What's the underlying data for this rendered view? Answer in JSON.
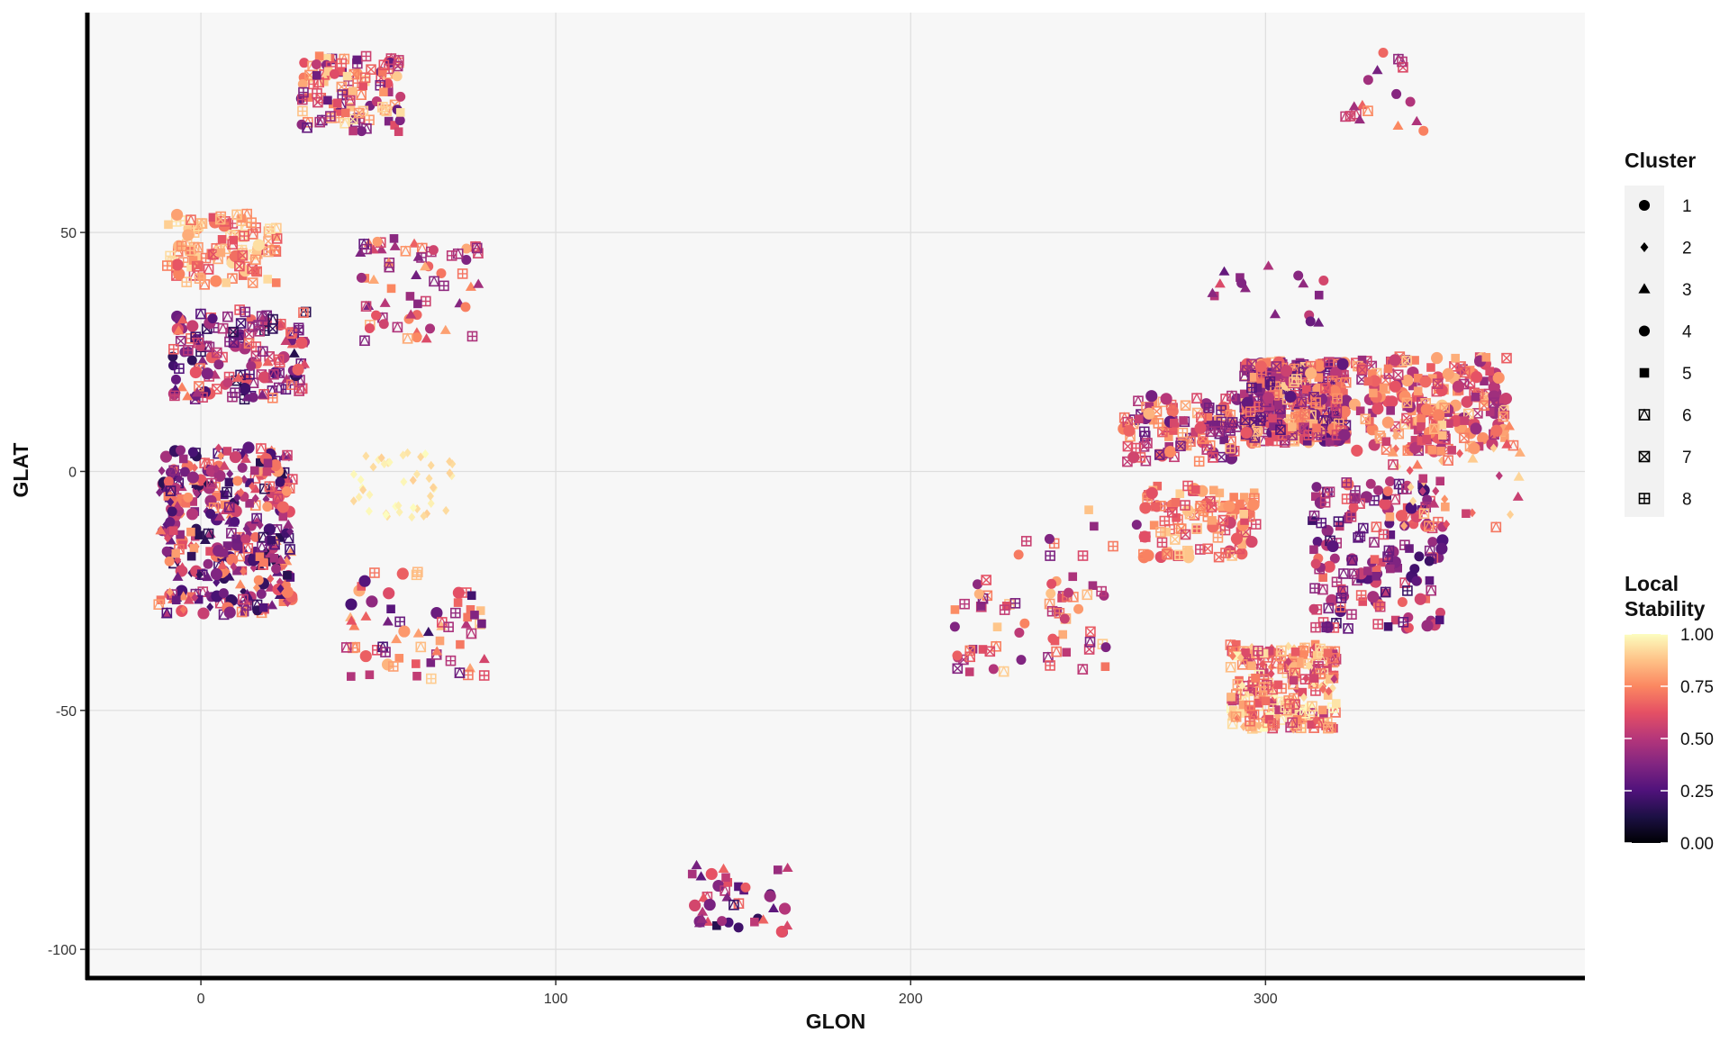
{
  "chart_data": {
    "type": "scatter",
    "xlabel": "GLON",
    "ylabel": "GLAT",
    "xlim": [
      -32,
      390
    ],
    "ylim": [
      -106,
      96
    ],
    "x_ticks": [
      0,
      100,
      200,
      300
    ],
    "x_tick_labels": [
      "0",
      "100",
      "200",
      "300"
    ],
    "y_ticks": [
      -100,
      -50,
      0,
      50
    ],
    "y_tick_labels": [
      "-100",
      "-50",
      "0",
      "50"
    ],
    "grid": true,
    "background": "#f7f7f7",
    "grid_color": "#dedede",
    "legend_position": "right",
    "shape_legend": {
      "title": "Cluster",
      "items": [
        {
          "label": "1",
          "shape": "dot"
        },
        {
          "label": "2",
          "shape": "diamond"
        },
        {
          "label": "3",
          "shape": "triangle"
        },
        {
          "label": "4",
          "shape": "dot"
        },
        {
          "label": "5",
          "shape": "square"
        },
        {
          "label": "6",
          "shape": "square-triangle"
        },
        {
          "label": "7",
          "shape": "square-x"
        },
        {
          "label": "8",
          "shape": "square-plus"
        }
      ]
    },
    "color_legend": {
      "title_lines": [
        "Local",
        "Stability"
      ],
      "min": 0,
      "max": 1,
      "ticks": [
        1.0,
        0.75,
        0.5,
        0.25,
        0.0
      ],
      "tick_labels": [
        "1.00",
        "0.75",
        "0.50",
        "0.25",
        "0.00"
      ],
      "palette": [
        "#000004",
        "#1c1044",
        "#4f127b",
        "#812581",
        "#b5367a",
        "#e55064",
        "#fb8761",
        "#fec287",
        "#fcfdbf"
      ]
    },
    "point_groups": [
      {
        "x": [
          -10,
          22
        ],
        "y": [
          39,
          54
        ],
        "n": 110,
        "clusters": [
          7,
          8,
          5,
          6,
          1
        ],
        "stability": [
          0.6,
          0.95
        ]
      },
      {
        "x": [
          -8,
          30
        ],
        "y": [
          15,
          34
        ],
        "n": 150,
        "clusters": [
          1,
          3,
          4,
          6,
          7,
          8
        ],
        "stability": [
          0.15,
          0.75
        ]
      },
      {
        "x": [
          -12,
          26
        ],
        "y": [
          -30,
          5
        ],
        "n": 380,
        "clusters": [
          1,
          3,
          4,
          5,
          6,
          2
        ],
        "stability": [
          0.15,
          0.8
        ]
      },
      {
        "x": [
          28,
          57
        ],
        "y": [
          71,
          87
        ],
        "n": 110,
        "clusters": [
          7,
          8,
          5,
          6,
          4
        ],
        "stability": [
          0.3,
          0.95
        ]
      },
      {
        "x": [
          44,
          80
        ],
        "y": [
          27,
          49
        ],
        "n": 65,
        "clusters": [
          3,
          4,
          5,
          6,
          8
        ],
        "stability": [
          0.3,
          0.85
        ]
      },
      {
        "x": [
          43,
          72
        ],
        "y": [
          -10,
          4
        ],
        "n": 45,
        "clusters": [
          2
        ],
        "stability": [
          0.9,
          1.0
        ]
      },
      {
        "x": [
          40,
          80
        ],
        "y": [
          -44,
          -21
        ],
        "n": 65,
        "clusters": [
          1,
          3,
          5,
          6,
          8
        ],
        "stability": [
          0.2,
          0.9
        ]
      },
      {
        "x": [
          137,
          166
        ],
        "y": [
          -97,
          -82
        ],
        "n": 40,
        "clusters": [
          1,
          3,
          4,
          5,
          6
        ],
        "stability": [
          0.15,
          0.7
        ]
      },
      {
        "x": [
          212,
          258
        ],
        "y": [
          -42,
          -22
        ],
        "n": 65,
        "clusters": [
          5,
          6,
          7,
          8,
          4
        ],
        "stability": [
          0.35,
          0.9
        ]
      },
      {
        "x": [
          230,
          270
        ],
        "y": [
          -20,
          -8
        ],
        "n": 10,
        "clusters": [
          4,
          5,
          8
        ],
        "stability": [
          0.3,
          0.9
        ]
      },
      {
        "x": [
          260,
          292
        ],
        "y": [
          2,
          16
        ],
        "n": 110,
        "clusters": [
          5,
          6,
          7,
          8,
          1
        ],
        "stability": [
          0.3,
          0.85
        ]
      },
      {
        "x": [
          265,
          298
        ],
        "y": [
          -18,
          -3
        ],
        "n": 110,
        "clusters": [
          5,
          7,
          8,
          1
        ],
        "stability": [
          0.55,
          0.9
        ]
      },
      {
        "x": [
          284,
          320
        ],
        "y": [
          30,
          44
        ],
        "n": 16,
        "clusters": [
          3,
          4,
          5
        ],
        "stability": [
          0.3,
          0.6
        ]
      },
      {
        "x": [
          294,
          323
        ],
        "y": [
          6,
          23
        ],
        "n": 420,
        "clusters": [
          5,
          6,
          7,
          8,
          1
        ],
        "stability": [
          0.25,
          0.9
        ]
      },
      {
        "x": [
          322,
          348
        ],
        "y": [
          71,
          88
        ],
        "n": 18,
        "clusters": [
          4,
          3,
          6,
          7
        ],
        "stability": [
          0.3,
          0.85
        ]
      },
      {
        "x": [
          325,
          368
        ],
        "y": [
          4,
          24
        ],
        "n": 220,
        "clusters": [
          1,
          5,
          7
        ],
        "stability": [
          0.4,
          0.9
        ]
      },
      {
        "x": [
          313,
          350
        ],
        "y": [
          -33,
          -2
        ],
        "n": 170,
        "clusters": [
          1,
          4,
          5,
          6,
          8
        ],
        "stability": [
          0.2,
          0.7
        ]
      },
      {
        "x": [
          335,
          372
        ],
        "y": [
          -12,
          10
        ],
        "n": 45,
        "clusters": [
          2,
          3,
          5,
          6
        ],
        "stability": [
          0.5,
          0.95
        ]
      },
      {
        "x": [
          290,
          320
        ],
        "y": [
          -54,
          -36
        ],
        "n": 260,
        "clusters": [
          2,
          5,
          6,
          8
        ],
        "stability": [
          0.5,
          1.0
        ]
      }
    ]
  }
}
